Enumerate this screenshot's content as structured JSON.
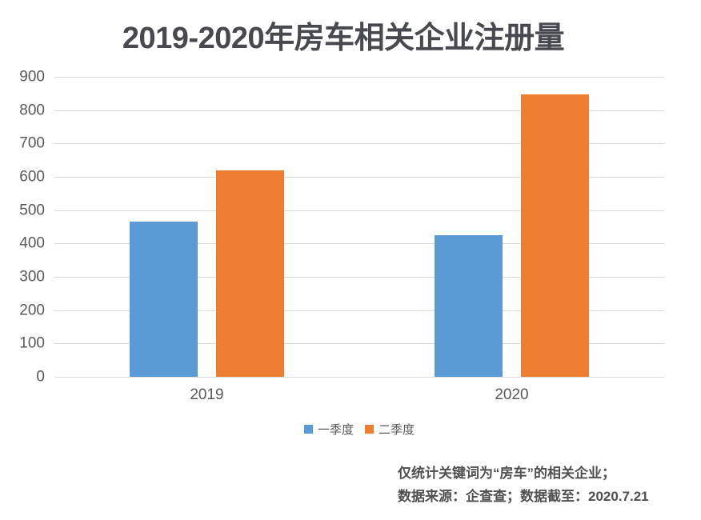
{
  "title": "2019-2020年房车相关企业注册量",
  "chart_data": {
    "type": "bar",
    "title": "2019-2020年房车相关企业注册量",
    "categories": [
      "2019",
      "2020"
    ],
    "series": [
      {
        "name": "一季度",
        "color": "#5B9BD5",
        "values": [
          465,
          425
        ]
      },
      {
        "name": "二季度",
        "color": "#ED7D31",
        "values": [
          620,
          848
        ]
      }
    ],
    "xlabel": "",
    "ylabel": "",
    "ylim": [
      0,
      900
    ],
    "ytick_step": 100,
    "yticks": [
      0,
      100,
      200,
      300,
      400,
      500,
      600,
      700,
      800,
      900
    ],
    "grid": true,
    "legend_position": "bottom"
  },
  "footnote": {
    "line1": "仅统计关键词为“房车”的相关企业；",
    "line2": "数据来源：企查查；数据截至：2020.7.21"
  },
  "colors": {
    "series_q1": "#5B9BD5",
    "series_q2": "#ED7D31",
    "gridline": "#D9D9D9",
    "axis_text": "#595959",
    "title_text": "#47494E",
    "footnote_text": "#4F5052",
    "background": "#FFFFFF"
  }
}
